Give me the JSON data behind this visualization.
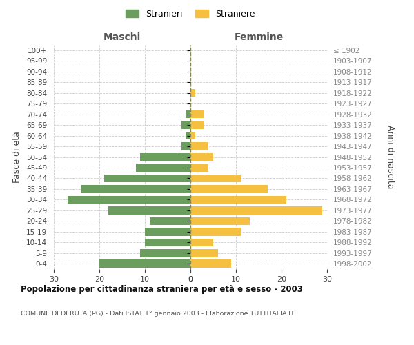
{
  "age_groups": [
    "0-4",
    "5-9",
    "10-14",
    "15-19",
    "20-24",
    "25-29",
    "30-34",
    "35-39",
    "40-44",
    "45-49",
    "50-54",
    "55-59",
    "60-64",
    "65-69",
    "70-74",
    "75-79",
    "80-84",
    "85-89",
    "90-94",
    "95-99",
    "100+"
  ],
  "birth_years": [
    "1998-2002",
    "1993-1997",
    "1988-1992",
    "1983-1987",
    "1978-1982",
    "1973-1977",
    "1968-1972",
    "1963-1967",
    "1958-1962",
    "1953-1957",
    "1948-1952",
    "1943-1947",
    "1938-1942",
    "1933-1937",
    "1928-1932",
    "1923-1927",
    "1918-1922",
    "1913-1917",
    "1908-1912",
    "1903-1907",
    "≤ 1902"
  ],
  "males": [
    20,
    11,
    10,
    10,
    9,
    18,
    27,
    24,
    19,
    12,
    11,
    2,
    1,
    2,
    1,
    0,
    0,
    0,
    0,
    0,
    0
  ],
  "females": [
    9,
    6,
    5,
    11,
    13,
    29,
    21,
    17,
    11,
    4,
    5,
    4,
    1,
    3,
    3,
    0,
    1,
    0,
    0,
    0,
    0
  ],
  "male_color": "#6b9e5e",
  "female_color": "#f5c040",
  "grid_color": "#cccccc",
  "center_line_color": "#888855",
  "title": "Popolazione per cittadinanza straniera per età e sesso - 2003",
  "subtitle": "COMUNE DI DERUTA (PG) - Dati ISTAT 1° gennaio 2003 - Elaborazione TUTTITALIA.IT",
  "legend_male": "Stranieri",
  "legend_female": "Straniere",
  "left_header": "Maschi",
  "right_header": "Femmine",
  "ylabel_left": "Fasce di età",
  "ylabel_right": "Anni di nascita",
  "xlim": 30,
  "background_color": "#ffffff"
}
